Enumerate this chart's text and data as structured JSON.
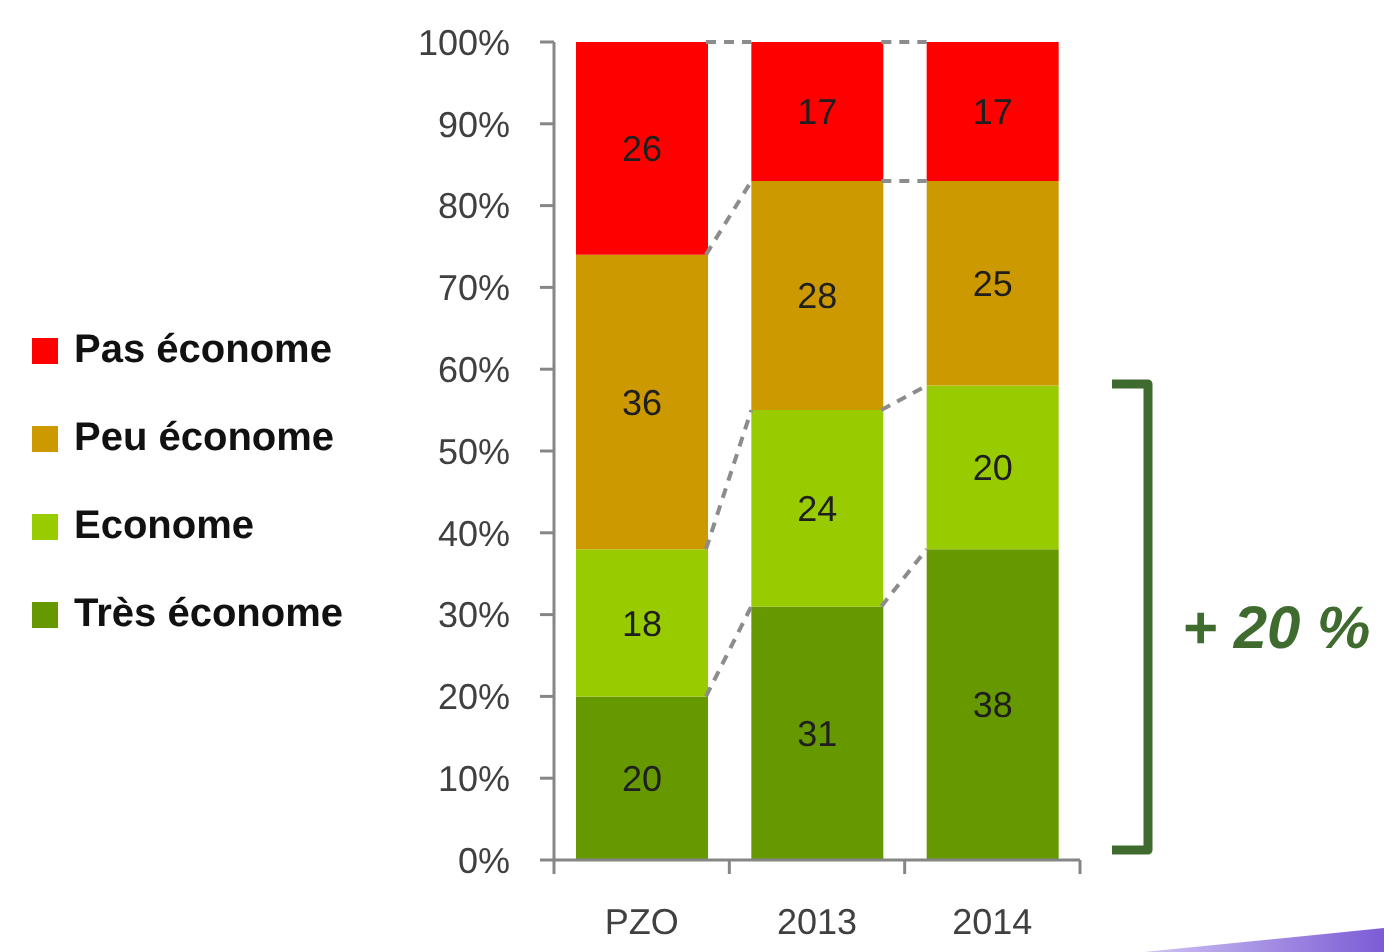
{
  "chart_data": {
    "type": "bar",
    "stacked": true,
    "categories": [
      "PZO",
      "2013",
      "2014"
    ],
    "series": [
      {
        "name": "Très économe",
        "color": "#669900",
        "values": [
          20,
          31,
          38
        ]
      },
      {
        "name": "Econome",
        "color": "#99cc00",
        "values": [
          18,
          24,
          20
        ]
      },
      {
        "name": "Peu économe",
        "color": "#cc9900",
        "values": [
          36,
          28,
          25
        ]
      },
      {
        "name": "Pas économe",
        "color": "#ff0000",
        "values": [
          26,
          17,
          17
        ]
      }
    ],
    "ylim": [
      0,
      100
    ],
    "yticks": [
      {
        "value": 0,
        "label": "0%"
      },
      {
        "value": 10,
        "label": "10%"
      },
      {
        "value": 20,
        "label": "20%"
      },
      {
        "value": 30,
        "label": "30%"
      },
      {
        "value": 40,
        "label": "40%"
      },
      {
        "value": 50,
        "label": "50%"
      },
      {
        "value": 60,
        "label": "60%"
      },
      {
        "value": 70,
        "label": "70%"
      },
      {
        "value": 80,
        "label": "80%"
      },
      {
        "value": 90,
        "label": "90%"
      },
      {
        "value": 100,
        "label": "100%"
      }
    ],
    "data_labels": true,
    "legend": "left",
    "annotations": [
      "+ 20 %"
    ]
  }
}
